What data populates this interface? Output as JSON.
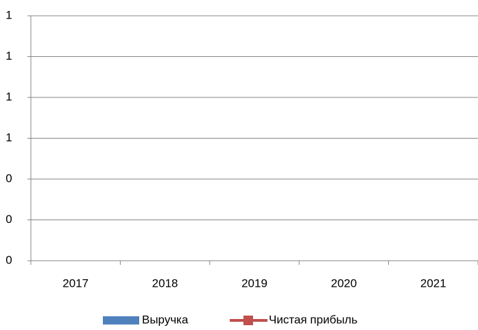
{
  "chart_data": {
    "type": "bar_line",
    "categories": [
      "2017",
      "2018",
      "2019",
      "2020",
      "2021"
    ],
    "series": [
      {
        "name": "Выручка",
        "color": "#4f81bd",
        "type": "bar",
        "values": [
          null,
          null,
          null,
          null,
          null
        ]
      },
      {
        "name": "Чистая прибыль",
        "color": "#c0504d",
        "type": "line",
        "values": [
          null,
          null,
          null,
          null,
          null
        ]
      }
    ],
    "ylim": [
      0,
      1.2
    ],
    "yticks": [
      0,
      {
        "value": 0.2,
        "label": "0"
      },
      {
        "value": 0.4,
        "label": "0"
      },
      {
        "value": 0.6,
        "label": "1"
      },
      {
        "value": 0.8,
        "label": "1"
      },
      1,
      {
        "value": 1.2,
        "label": "1"
      }
    ],
    "grid": true,
    "legend": "bottom"
  }
}
